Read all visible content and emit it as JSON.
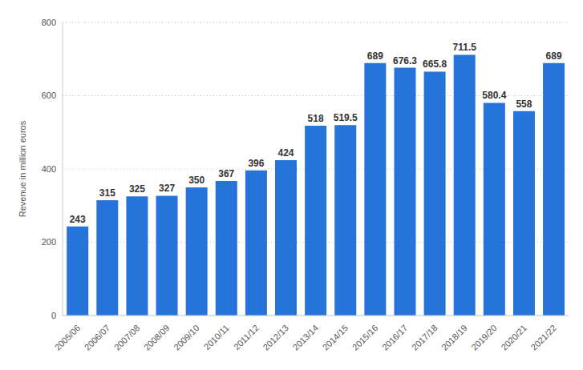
{
  "chart_data": {
    "type": "bar",
    "y_label": "Revenue in million euros",
    "categories": [
      "2005/06",
      "2006/07",
      "2007/08",
      "2008/09",
      "2009/10",
      "2010/11",
      "2011/12",
      "2012/13",
      "2013/14",
      "2014/15",
      "2015/16",
      "2016/17",
      "2017/18",
      "2018/19",
      "2019/20",
      "2020/21",
      "2021/22"
    ],
    "values": [
      243,
      315,
      325,
      327,
      350,
      367,
      396,
      424,
      518,
      519.5,
      689,
      676.3,
      665.8,
      711.5,
      580.4,
      558,
      689
    ],
    "color": "#2673d9",
    "ylim": [
      0,
      800
    ],
    "yticks": [
      0,
      200,
      400,
      600,
      800
    ],
    "grid": true,
    "data_labels": true
  }
}
